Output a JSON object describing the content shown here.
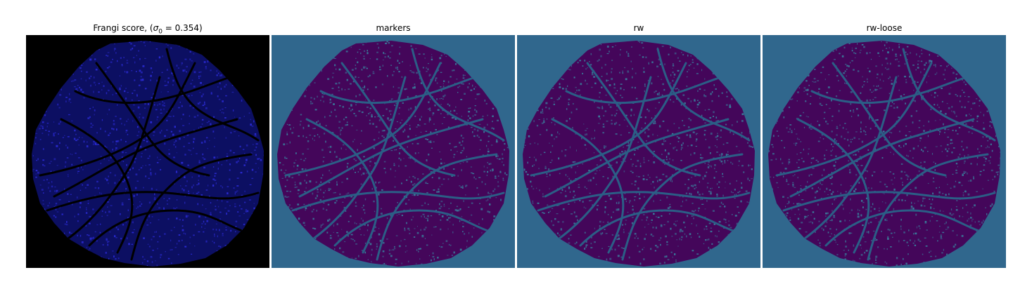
{
  "figure": {
    "panels": [
      {
        "id": "frangi",
        "title_prefix": "Frangi score, (",
        "title_symbol": "σ",
        "title_sub": "0",
        "title_suffix": " = 0.354)",
        "background": "#000000",
        "blob": "#0c0f62",
        "vessel": "#000000",
        "speck": "#2a2ad0"
      },
      {
        "id": "markers",
        "title": "markers",
        "background": "#30678d",
        "blob": "#44065a",
        "vessel": "#2b5e86",
        "speck": "#3a7a9a"
      },
      {
        "id": "rw",
        "title": "rw",
        "background": "#30678d",
        "blob": "#44065a",
        "vessel": "#2b5e86",
        "speck": "#3a7a9a"
      },
      {
        "id": "rw-loose",
        "title": "rw-loose",
        "background": "#30678d",
        "blob": "#44065a",
        "vessel": "#2b5e86",
        "speck": "#3a7a9a"
      }
    ]
  }
}
